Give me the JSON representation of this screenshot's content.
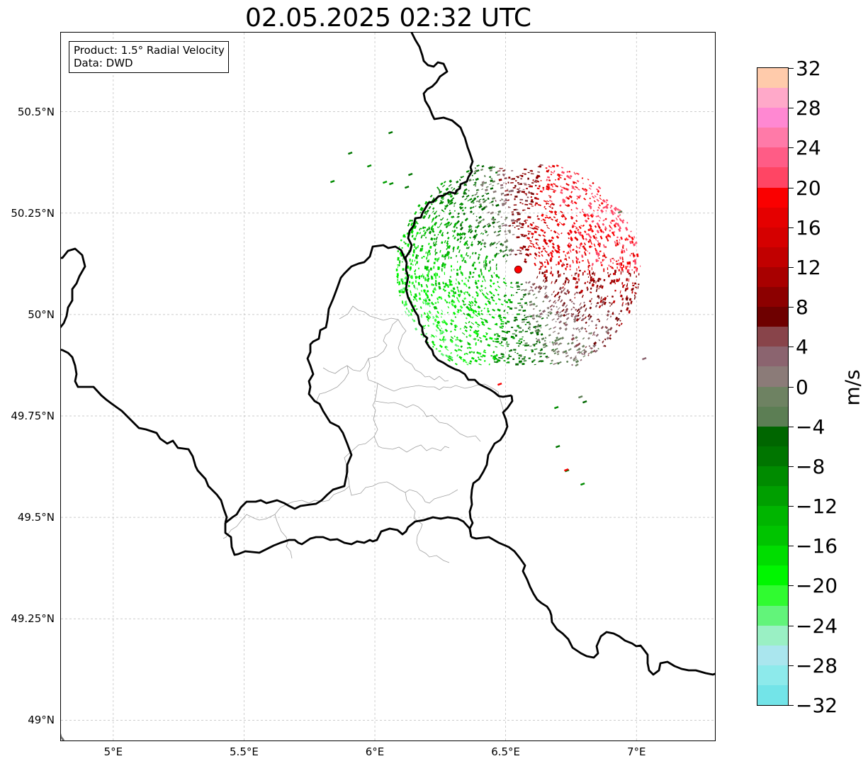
{
  "title": "02.05.2025 02:32 UTC",
  "info_box": {
    "product": "Product: 1.5° Radial Velocity",
    "data": "Data: DWD"
  },
  "map": {
    "lon_range": [
      4.8,
      7.3
    ],
    "lat_range": [
      48.95,
      50.695
    ],
    "lat_ticks": [
      {
        "value": 50.5,
        "label": "50.5°N"
      },
      {
        "value": 50.25,
        "label": "50.25°N"
      },
      {
        "value": 50.0,
        "label": "50°N"
      },
      {
        "value": 49.75,
        "label": "49.75°N"
      },
      {
        "value": 49.5,
        "label": "49.5°N"
      },
      {
        "value": 49.25,
        "label": "49.25°N"
      },
      {
        "value": 49.0,
        "label": "49°N"
      }
    ],
    "lon_ticks": [
      {
        "value": 5.0,
        "label": "5°E"
      },
      {
        "value": 5.5,
        "label": "5.5°E"
      },
      {
        "value": 6.0,
        "label": "6°E"
      },
      {
        "value": 6.5,
        "label": "6.5°E"
      },
      {
        "value": 7.0,
        "label": "7°E"
      }
    ],
    "radar_site": {
      "lon": 6.548,
      "lat": 50.111,
      "color": "#ff0000"
    },
    "gridlines": true,
    "border_color": "#000000",
    "district_color": "#a0a0a0"
  },
  "colorbar": {
    "unit": "m/s",
    "min": -32,
    "max": 32,
    "step": 2,
    "ticks": [
      32,
      28,
      24,
      20,
      16,
      12,
      8,
      4,
      0,
      -4,
      -8,
      -12,
      -16,
      -20,
      -24,
      -28,
      -32
    ],
    "tick_labels": [
      "32",
      "28",
      "24",
      "20",
      "16",
      "12",
      "8",
      "4",
      "0",
      "−4",
      "−8",
      "−12",
      "−16",
      "−20",
      "−24",
      "−28",
      "−32"
    ],
    "colors_top_to_bottom": [
      "#ffcbab",
      "#ffa9c9",
      "#ff88d2",
      "#ff7aa8",
      "#ff5c86",
      "#ff4564",
      "#fa0000",
      "#e50000",
      "#d50000",
      "#c10000",
      "#a80000",
      "#8c0000",
      "#6e0000",
      "#88444a",
      "#8b646f",
      "#8b7b78",
      "#6e8262",
      "#5c7e54",
      "#006600",
      "#007500",
      "#008b00",
      "#009f00",
      "#00b500",
      "#00c400",
      "#00dd00",
      "#00f600",
      "#30fb30",
      "#62f47a",
      "#9af0c4",
      "#aae6ee",
      "#8deaeb",
      "#73e4e8"
    ]
  }
}
